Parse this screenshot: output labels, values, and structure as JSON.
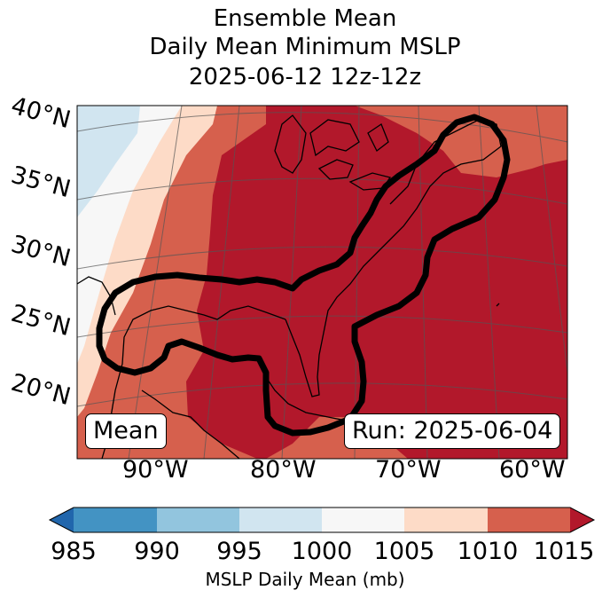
{
  "title": {
    "line1": "Ensemble Mean",
    "line2": "Daily Mean Minimum MSLP",
    "line3": "2025-06-12 12z-12z"
  },
  "map": {
    "lat_labels": [
      "40°N",
      "35°N",
      "30°N",
      "25°N",
      "20°N"
    ],
    "lon_labels": [
      "90°W",
      "80°W",
      "70°W",
      "60°W"
    ],
    "mean_label": "Mean",
    "run_label": "Run: 2025-06-04"
  },
  "colorbar": {
    "ticks": [
      "985",
      "990",
      "995",
      "1000",
      "1005",
      "1010",
      "1015"
    ],
    "label": "MSLP Daily Mean (mb)",
    "colors": {
      "below_985": "#2166ac",
      "c985_990": "#4393c3",
      "c990_995": "#92c5de",
      "c995_1000": "#d1e5f0",
      "c1000_1005": "#f7f7f7",
      "c1005_1010": "#fddbc7",
      "c1010_1015": "#d6604d",
      "above_1015": "#b2182b"
    }
  }
}
